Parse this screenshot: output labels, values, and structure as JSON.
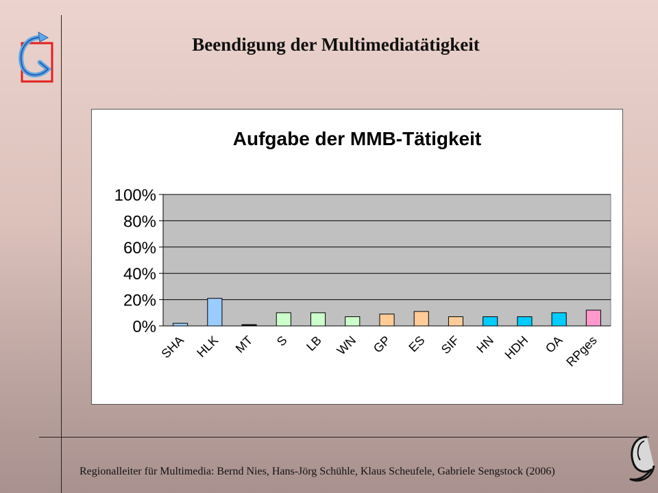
{
  "slide": {
    "title": "Beendigung der Multimediatätigkeit",
    "footer": "Regionalleiter für Multimedia: Bernd Nies, Hans-Jörg Schühle, Klaus Scheufele, Gabriele Sengstock (2006)"
  },
  "colors": {
    "plot_area": "#c0c0c0",
    "light_blue": "#99ccff",
    "black": "#111111",
    "light_green": "#ccffcc",
    "peach": "#ffcc99",
    "cyan": "#00ccff",
    "pink": "#ff99cc"
  },
  "chart_data": {
    "type": "bar",
    "title": "Aufgabe der MMB-Tätigkeit",
    "xlabel": "",
    "ylabel": "",
    "ylim": [
      0,
      100
    ],
    "yticks": [
      "0%",
      "20%",
      "40%",
      "60%",
      "80%",
      "100%"
    ],
    "grid": true,
    "legend": "none",
    "categories": [
      "SHA",
      "HLK",
      "MT",
      "S",
      "LB",
      "WN",
      "GP",
      "ES",
      "SIF",
      "HN",
      "HDH",
      "OA",
      "RPges"
    ],
    "values": [
      2,
      21,
      1,
      10,
      10,
      7,
      9,
      11,
      7,
      7,
      7,
      10,
      12
    ],
    "bar_colors": [
      "#99ccff",
      "#99ccff",
      "#111111",
      "#ccffcc",
      "#ccffcc",
      "#ccffcc",
      "#ffcc99",
      "#ffcc99",
      "#ffcc99",
      "#00ccff",
      "#00ccff",
      "#00ccff",
      "#ff99cc"
    ]
  }
}
